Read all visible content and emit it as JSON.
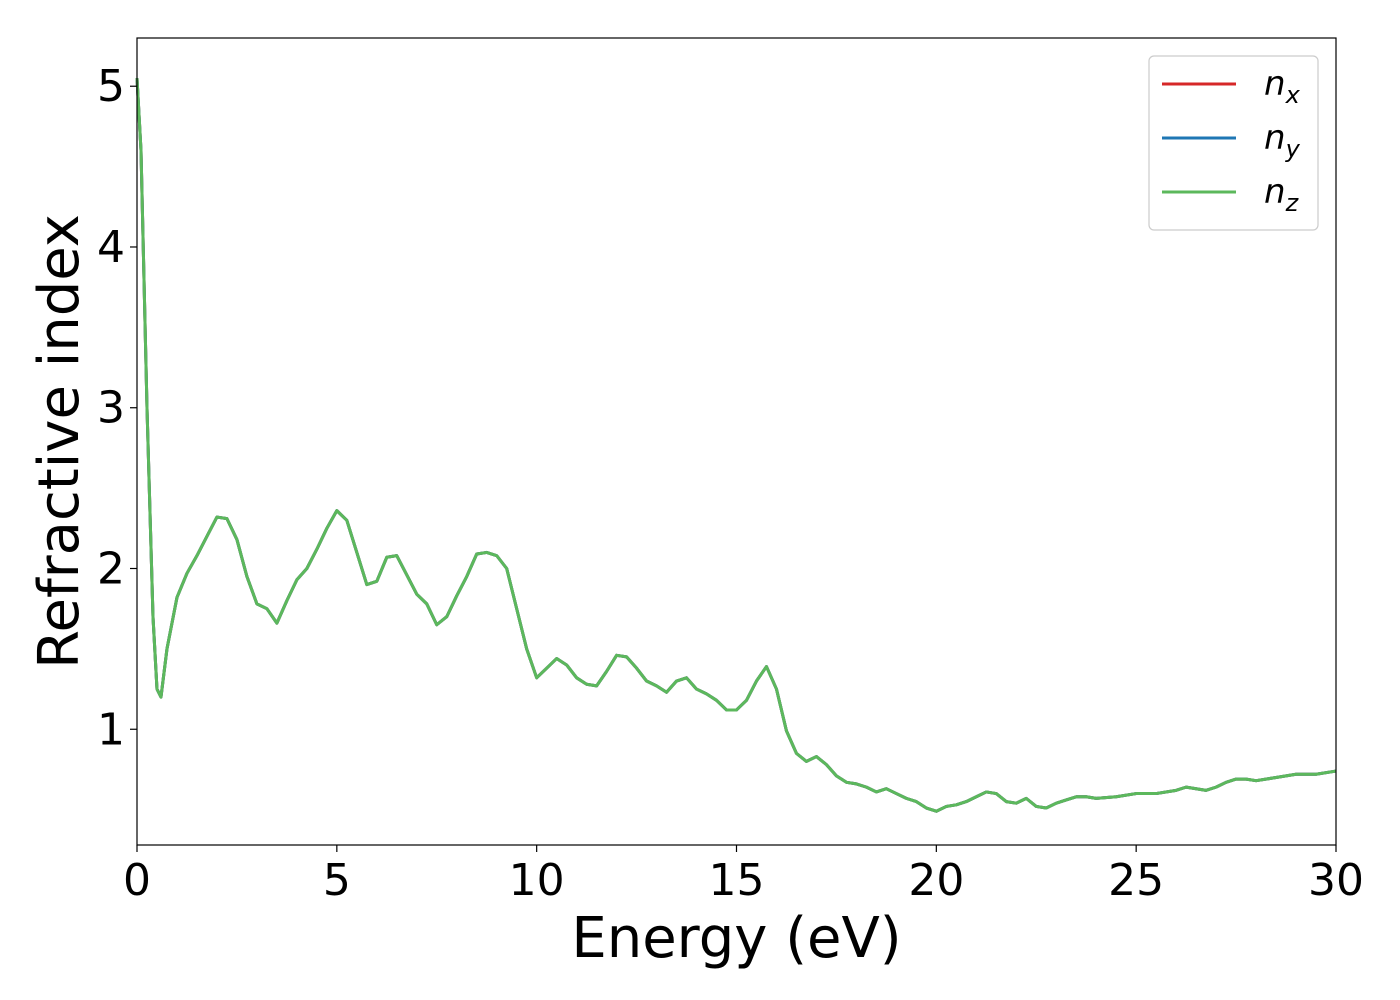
{
  "chart_data": {
    "type": "line",
    "xlabel": "Energy (eV)",
    "ylabel": "Refractive index",
    "xlim": [
      0,
      30
    ],
    "ylim": [
      0.28,
      5.3
    ],
    "xticks": [
      0,
      5,
      10,
      15,
      20,
      25,
      30
    ],
    "xtick_labels": [
      "0",
      "5",
      "10",
      "15",
      "20",
      "25",
      "30"
    ],
    "yticks": [
      1,
      2,
      3,
      4,
      5
    ],
    "ytick_labels": [
      "1",
      "2",
      "3",
      "4",
      "5"
    ],
    "grid": false,
    "legend_position": "top-right",
    "x": [
      0.0,
      0.1,
      0.25,
      0.4,
      0.5,
      0.6,
      0.75,
      1.0,
      1.25,
      1.5,
      1.75,
      2.0,
      2.25,
      2.5,
      2.75,
      3.0,
      3.25,
      3.5,
      3.75,
      4.0,
      4.25,
      4.5,
      4.75,
      5.0,
      5.25,
      5.5,
      5.75,
      6.0,
      6.25,
      6.5,
      6.75,
      7.0,
      7.25,
      7.5,
      7.75,
      8.0,
      8.25,
      8.5,
      8.75,
      9.0,
      9.25,
      9.5,
      9.75,
      10.0,
      10.25,
      10.5,
      10.75,
      11.0,
      11.25,
      11.5,
      11.75,
      12.0,
      12.25,
      12.5,
      12.75,
      13.0,
      13.25,
      13.5,
      13.75,
      14.0,
      14.25,
      14.5,
      14.75,
      15.0,
      15.25,
      15.5,
      15.75,
      16.0,
      16.25,
      16.5,
      16.75,
      17.0,
      17.25,
      17.5,
      17.75,
      18.0,
      18.25,
      18.5,
      18.75,
      19.0,
      19.25,
      19.5,
      19.75,
      20.0,
      20.25,
      20.5,
      20.75,
      21.0,
      21.25,
      21.5,
      21.75,
      22.0,
      22.25,
      22.5,
      22.75,
      23.0,
      23.25,
      23.5,
      23.75,
      24.0,
      24.5,
      25.0,
      25.5,
      26.0,
      26.25,
      26.5,
      26.75,
      27.0,
      27.25,
      27.5,
      27.75,
      28.0,
      28.5,
      29.0,
      29.5,
      30.0
    ],
    "series": [
      {
        "name": "n_x",
        "label_base": "n",
        "label_sub": "x",
        "color": "#d62728",
        "values": [
          5.05,
          4.6,
          3.0,
          1.7,
          1.25,
          1.2,
          1.5,
          1.82,
          1.97,
          2.08,
          2.2,
          2.32,
          2.31,
          2.18,
          1.95,
          1.78,
          1.75,
          1.66,
          1.8,
          1.93,
          2.0,
          2.12,
          2.25,
          2.36,
          2.3,
          2.1,
          1.9,
          1.92,
          2.07,
          2.08,
          1.96,
          1.84,
          1.78,
          1.65,
          1.7,
          1.83,
          1.95,
          2.09,
          2.1,
          2.08,
          2.0,
          1.75,
          1.5,
          1.32,
          1.38,
          1.44,
          1.4,
          1.32,
          1.28,
          1.27,
          1.36,
          1.46,
          1.45,
          1.38,
          1.3,
          1.27,
          1.23,
          1.3,
          1.32,
          1.25,
          1.22,
          1.18,
          1.12,
          1.12,
          1.18,
          1.3,
          1.39,
          1.25,
          0.99,
          0.85,
          0.8,
          0.83,
          0.78,
          0.71,
          0.67,
          0.66,
          0.64,
          0.61,
          0.63,
          0.6,
          0.57,
          0.55,
          0.51,
          0.49,
          0.52,
          0.53,
          0.55,
          0.58,
          0.61,
          0.6,
          0.55,
          0.54,
          0.57,
          0.52,
          0.51,
          0.54,
          0.56,
          0.58,
          0.58,
          0.57,
          0.58,
          0.6,
          0.6,
          0.62,
          0.64,
          0.63,
          0.62,
          0.64,
          0.67,
          0.69,
          0.69,
          0.68,
          0.7,
          0.72,
          0.72,
          0.74
        ]
      },
      {
        "name": "n_y",
        "label_base": "n",
        "label_sub": "y",
        "color": "#1f77b4",
        "values": [
          5.05,
          4.6,
          3.0,
          1.7,
          1.25,
          1.2,
          1.5,
          1.82,
          1.97,
          2.08,
          2.2,
          2.32,
          2.31,
          2.18,
          1.95,
          1.78,
          1.75,
          1.66,
          1.8,
          1.93,
          2.0,
          2.12,
          2.25,
          2.36,
          2.3,
          2.1,
          1.9,
          1.92,
          2.07,
          2.08,
          1.96,
          1.84,
          1.78,
          1.65,
          1.7,
          1.83,
          1.95,
          2.09,
          2.1,
          2.08,
          2.0,
          1.75,
          1.5,
          1.32,
          1.38,
          1.44,
          1.4,
          1.32,
          1.28,
          1.27,
          1.36,
          1.46,
          1.45,
          1.38,
          1.3,
          1.27,
          1.23,
          1.3,
          1.32,
          1.25,
          1.22,
          1.18,
          1.12,
          1.12,
          1.18,
          1.3,
          1.39,
          1.25,
          0.99,
          0.85,
          0.8,
          0.83,
          0.78,
          0.71,
          0.67,
          0.66,
          0.64,
          0.61,
          0.63,
          0.6,
          0.57,
          0.55,
          0.51,
          0.49,
          0.52,
          0.53,
          0.55,
          0.58,
          0.61,
          0.6,
          0.55,
          0.54,
          0.57,
          0.52,
          0.51,
          0.54,
          0.56,
          0.58,
          0.58,
          0.57,
          0.58,
          0.6,
          0.6,
          0.62,
          0.64,
          0.63,
          0.62,
          0.64,
          0.67,
          0.69,
          0.69,
          0.68,
          0.7,
          0.72,
          0.72,
          0.74
        ]
      },
      {
        "name": "n_z",
        "label_base": "n",
        "label_sub": "z",
        "color": "#5cb85c",
        "values": [
          5.05,
          4.6,
          3.0,
          1.7,
          1.25,
          1.2,
          1.5,
          1.82,
          1.97,
          2.08,
          2.2,
          2.32,
          2.31,
          2.18,
          1.95,
          1.78,
          1.75,
          1.66,
          1.8,
          1.93,
          2.0,
          2.12,
          2.25,
          2.36,
          2.3,
          2.1,
          1.9,
          1.92,
          2.07,
          2.08,
          1.96,
          1.84,
          1.78,
          1.65,
          1.7,
          1.83,
          1.95,
          2.09,
          2.1,
          2.08,
          2.0,
          1.75,
          1.5,
          1.32,
          1.38,
          1.44,
          1.4,
          1.32,
          1.28,
          1.27,
          1.36,
          1.46,
          1.45,
          1.38,
          1.3,
          1.27,
          1.23,
          1.3,
          1.32,
          1.25,
          1.22,
          1.18,
          1.12,
          1.12,
          1.18,
          1.3,
          1.39,
          1.25,
          0.99,
          0.85,
          0.8,
          0.83,
          0.78,
          0.71,
          0.67,
          0.66,
          0.64,
          0.61,
          0.63,
          0.6,
          0.57,
          0.55,
          0.51,
          0.49,
          0.52,
          0.53,
          0.55,
          0.58,
          0.61,
          0.6,
          0.55,
          0.54,
          0.57,
          0.52,
          0.51,
          0.54,
          0.56,
          0.58,
          0.58,
          0.57,
          0.58,
          0.6,
          0.6,
          0.62,
          0.64,
          0.63,
          0.62,
          0.64,
          0.67,
          0.69,
          0.69,
          0.68,
          0.7,
          0.72,
          0.72,
          0.74
        ]
      }
    ]
  }
}
